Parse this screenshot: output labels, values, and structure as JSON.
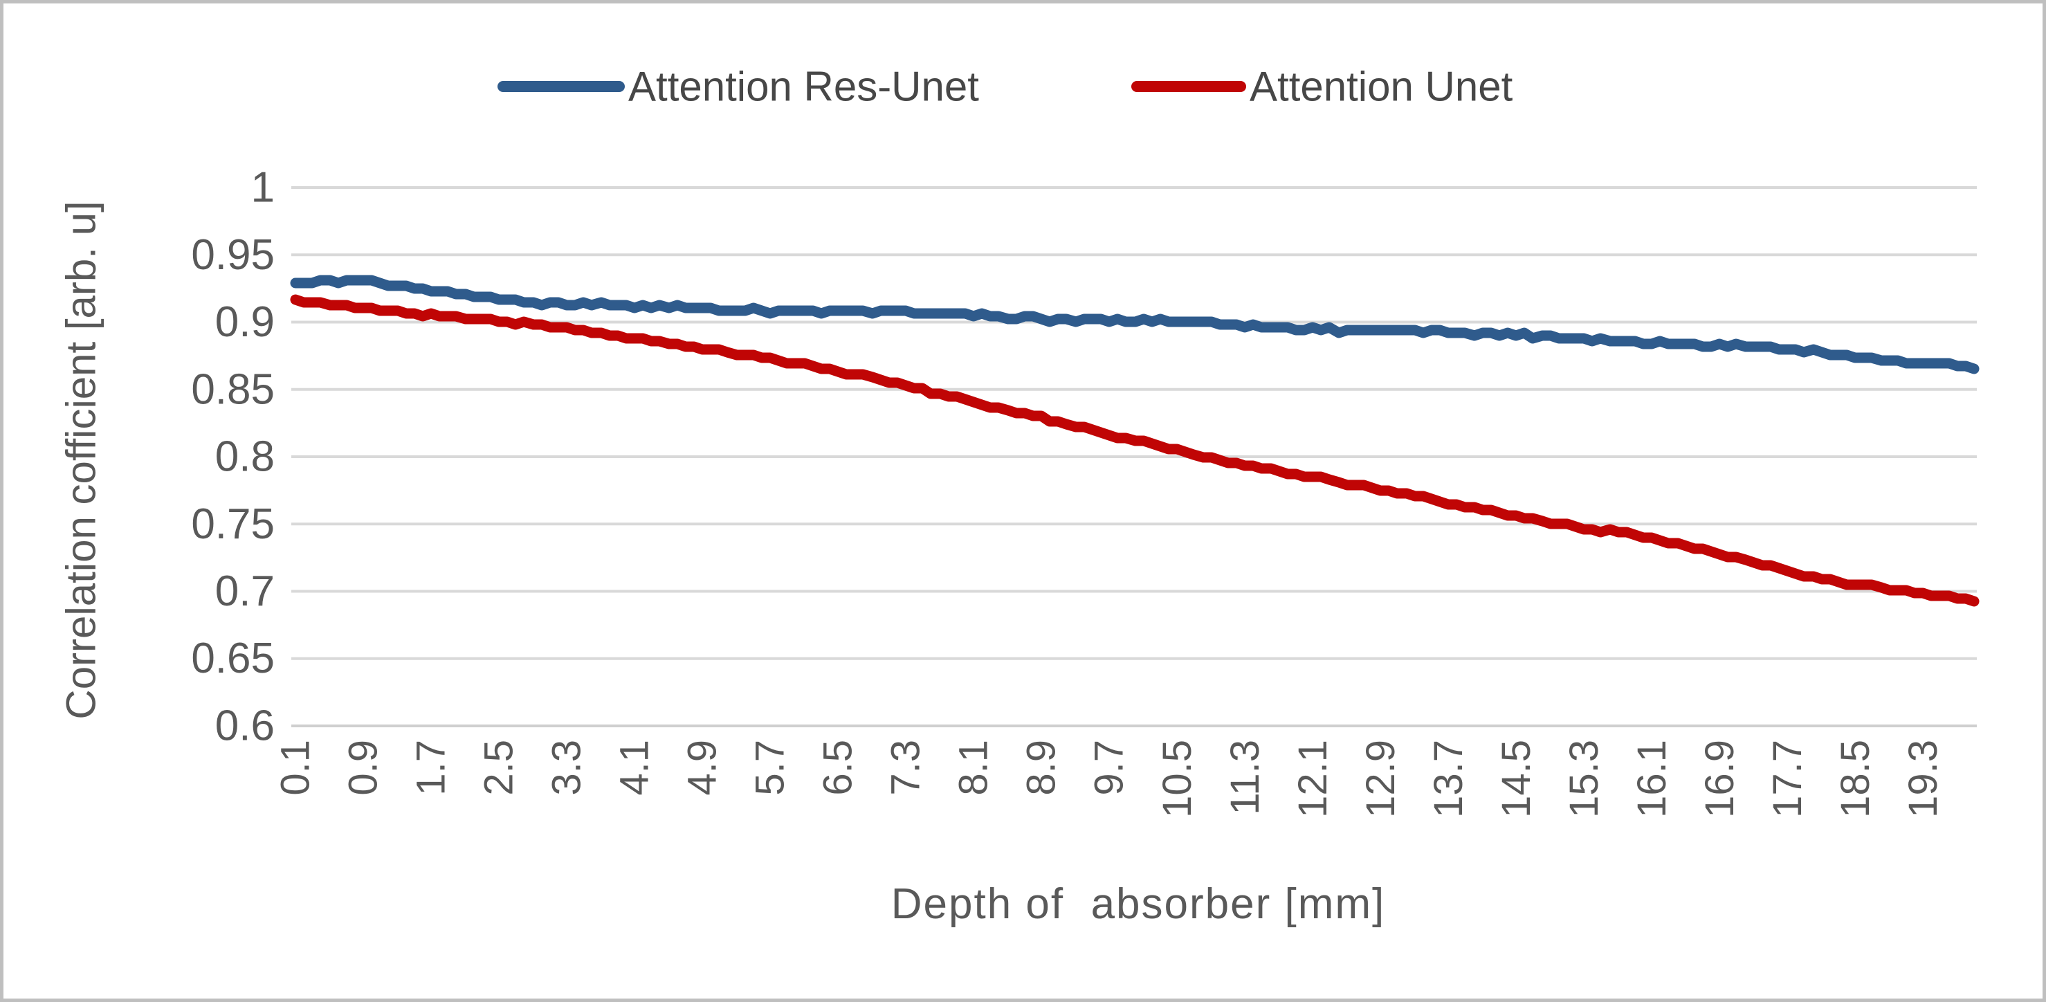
{
  "frame": {
    "background": "#ffffff",
    "border_color": "#bfbfbf"
  },
  "colors": {
    "series_blue": "#2F5B8C",
    "series_red": "#C00505",
    "gridline": "#d9d9d9",
    "axis_line": "#cfcfcf",
    "axis_text": "#595959",
    "legend_text": "#474747"
  },
  "legend": {
    "position": "top-center",
    "items": [
      {
        "label": "Attention Res-Unet",
        "color": "#2F5B8C"
      },
      {
        "label": "Attention Unet",
        "color": "#C00505"
      }
    ]
  },
  "chart_data": {
    "type": "line",
    "title": "",
    "xlabel": "Depth of  absorber [mm]",
    "ylabel": "Correlation cofficient [arb. u]",
    "xlim": [
      0.1,
      19.9
    ],
    "ylim": [
      0.6,
      1.0
    ],
    "grid": "horizontal-only",
    "legend_position": "top",
    "y_ticks": [
      1,
      0.95,
      0.9,
      0.85,
      0.8,
      0.75,
      0.7,
      0.65,
      0.6
    ],
    "y_tick_labels": [
      "1",
      "0.95",
      "0.9",
      "0.85",
      "0.8",
      "0.75",
      "0.7",
      "0.65",
      "0.6"
    ],
    "x_tick_values": [
      0.1,
      0.9,
      1.7,
      2.5,
      3.3,
      4.1,
      4.9,
      5.7,
      6.5,
      7.3,
      8.1,
      8.9,
      9.7,
      10.5,
      11.3,
      12.1,
      12.9,
      13.7,
      14.5,
      15.3,
      16.1,
      16.9,
      17.7,
      18.5,
      19.3
    ],
    "x_tick_labels": [
      "0.1",
      "0.9",
      "1.7",
      "2.5",
      "3.3",
      "4.1",
      "4.9",
      "5.7",
      "6.5",
      "7.3",
      "8.1",
      "8.9",
      "9.7",
      "10.5",
      "11.3",
      "12.1",
      "12.9",
      "13.7",
      "14.5",
      "15.3",
      "16.1",
      "16.9",
      "17.7",
      "18.5",
      "19.3"
    ],
    "series": [
      {
        "name": "Attention Res-Unet",
        "color": "#2F5B8C",
        "x": [
          0.1,
          1,
          2,
          3,
          4,
          5,
          6,
          7,
          8,
          9,
          10,
          11,
          12,
          13,
          14,
          15,
          16,
          17,
          18,
          19,
          19.9
        ],
        "y": [
          0.93,
          0.928,
          0.922,
          0.915,
          0.911,
          0.91,
          0.909,
          0.907,
          0.905,
          0.903,
          0.901,
          0.898,
          0.896,
          0.894,
          0.891,
          0.889,
          0.886,
          0.882,
          0.878,
          0.872,
          0.866
        ]
      },
      {
        "name": "Attention Unet",
        "color": "#C00505",
        "x": [
          0.1,
          1,
          2,
          3,
          4,
          5,
          6,
          7,
          8,
          9,
          10,
          11,
          12,
          13,
          14,
          15,
          16,
          17,
          18,
          19,
          19.9
        ],
        "y": [
          0.916,
          0.91,
          0.904,
          0.897,
          0.889,
          0.88,
          0.869,
          0.857,
          0.843,
          0.827,
          0.812,
          0.798,
          0.786,
          0.774,
          0.762,
          0.751,
          0.74,
          0.726,
          0.711,
          0.7,
          0.693
        ]
      }
    ]
  }
}
